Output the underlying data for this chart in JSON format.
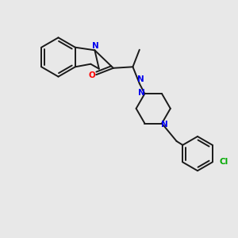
{
  "background_color": "#e8e8e8",
  "bond_color": "#1a1a1a",
  "nitrogen_color": "#0000ee",
  "oxygen_color": "#ff0000",
  "chlorine_color": "#00aa00",
  "figsize": [
    3.0,
    3.0
  ],
  "dpi": 100,
  "lw": 1.4,
  "fs": 7.5,
  "xlim": [
    0,
    10
  ],
  "ylim": [
    0,
    10
  ]
}
